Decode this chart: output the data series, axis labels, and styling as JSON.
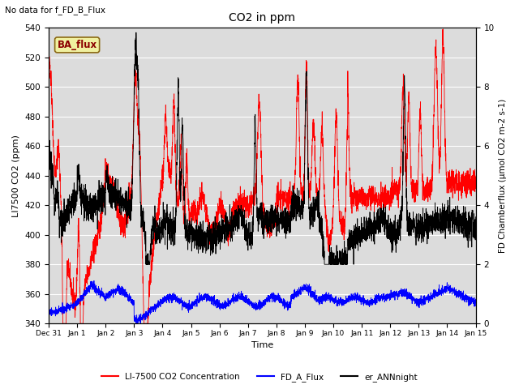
{
  "title": "CO2 in ppm",
  "top_left_text": "No data for f_FD_B_Flux",
  "box_label": "BA_flux",
  "ylabel_left": "LI7500 CO2 (ppm)",
  "ylabel_right": "FD Chamberflux (μmol CO2 m-2 s-1)",
  "xlabel": "Time",
  "ylim_left": [
    340,
    540
  ],
  "ylim_right": [
    0.0,
    10.0
  ],
  "yticks_left": [
    340,
    360,
    380,
    400,
    420,
    440,
    460,
    480,
    500,
    520,
    540
  ],
  "yticks_right": [
    0.0,
    2.0,
    4.0,
    6.0,
    8.0,
    10.0
  ],
  "color_red": "#FF0000",
  "color_blue": "#0000FF",
  "color_black": "#000000",
  "legend_labels": [
    "LI-7500 CO2 Concentration",
    "FD_A_Flux",
    "er_ANNnight"
  ],
  "bg_color": "#DCDCDC",
  "xstart": 0,
  "xend": 15,
  "xtick_labels": [
    "Dec 31",
    "Jan 1",
    "Jan 2",
    "Jan 3",
    "Jan 4",
    "Jan 5",
    "Jan 6",
    "Jan 7",
    "Jan 8",
    "Jan 9",
    "Jan 10",
    "Jan 11",
    "Jan 12",
    "Jan 13",
    "Jan 14",
    "Jan 15"
  ],
  "seed": 42,
  "npoints": 3600
}
